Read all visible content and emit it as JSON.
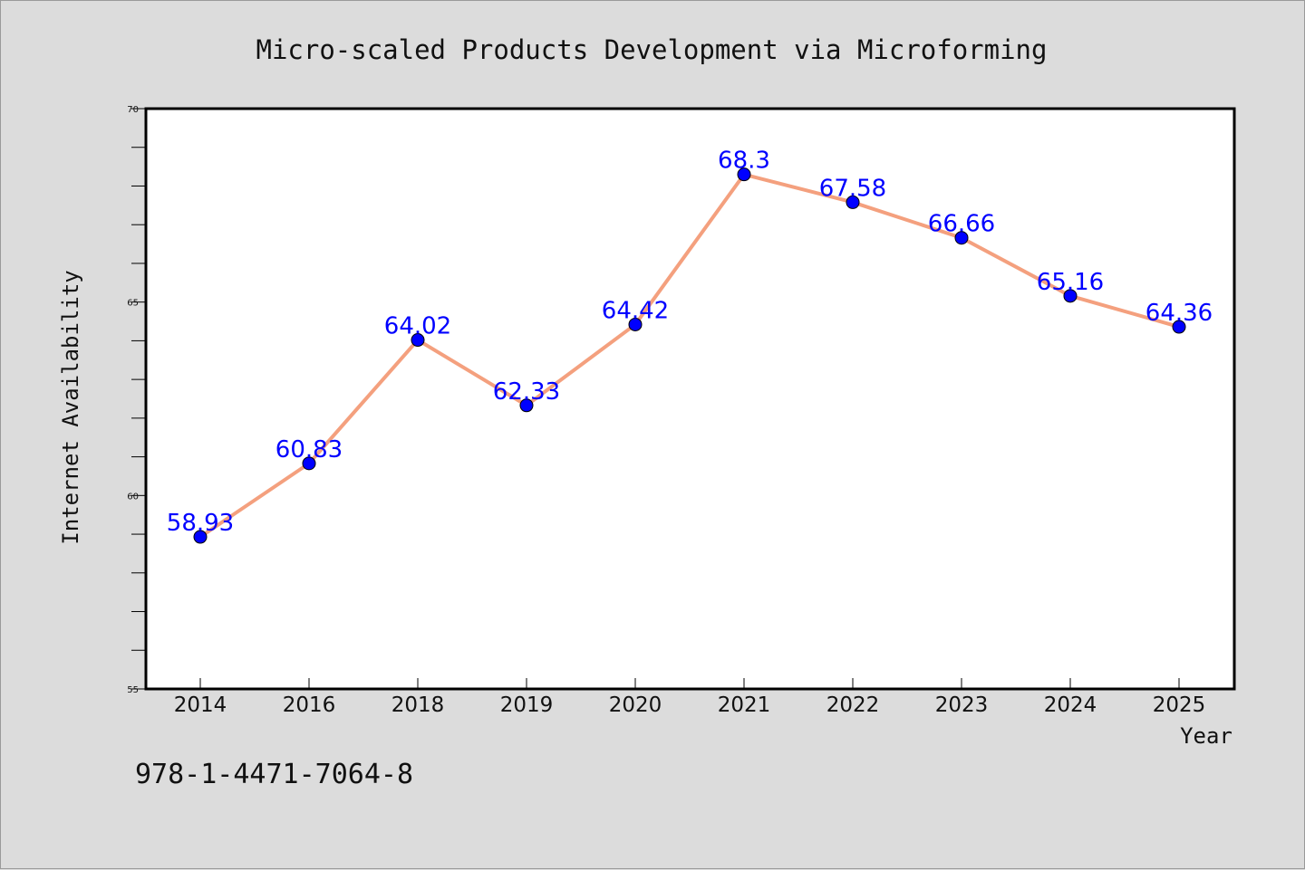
{
  "chart_data": {
    "type": "line",
    "title": "Micro-scaled Products Development via Microforming",
    "xlabel": "Year",
    "ylabel": "Internet Availability",
    "categories": [
      "2014",
      "2016",
      "2018",
      "2019",
      "2020",
      "2021",
      "2022",
      "2023",
      "2024",
      "2025"
    ],
    "series": [
      {
        "values": [
          58.93,
          60.83,
          64.02,
          62.33,
          64.42,
          68.3,
          67.58,
          66.66,
          65.16,
          64.36
        ],
        "line_color": "#f4a07e",
        "marker_color": "#0000ff"
      }
    ],
    "data_labels": [
      "58.93",
      "60.83",
      "64.02",
      "62.33",
      "64.42",
      "68.3",
      "67.58",
      "66.66",
      "65.16",
      "64.36"
    ],
    "ylim": [
      55,
      70
    ],
    "yticks": [
      55,
      60,
      65,
      70
    ],
    "ytick_labels": [
      "55",
      "60",
      "65",
      "70"
    ],
    "grid": false,
    "legend": "none",
    "label_color": "#0000ff"
  },
  "footer_text": "978-1-4471-7064-8"
}
